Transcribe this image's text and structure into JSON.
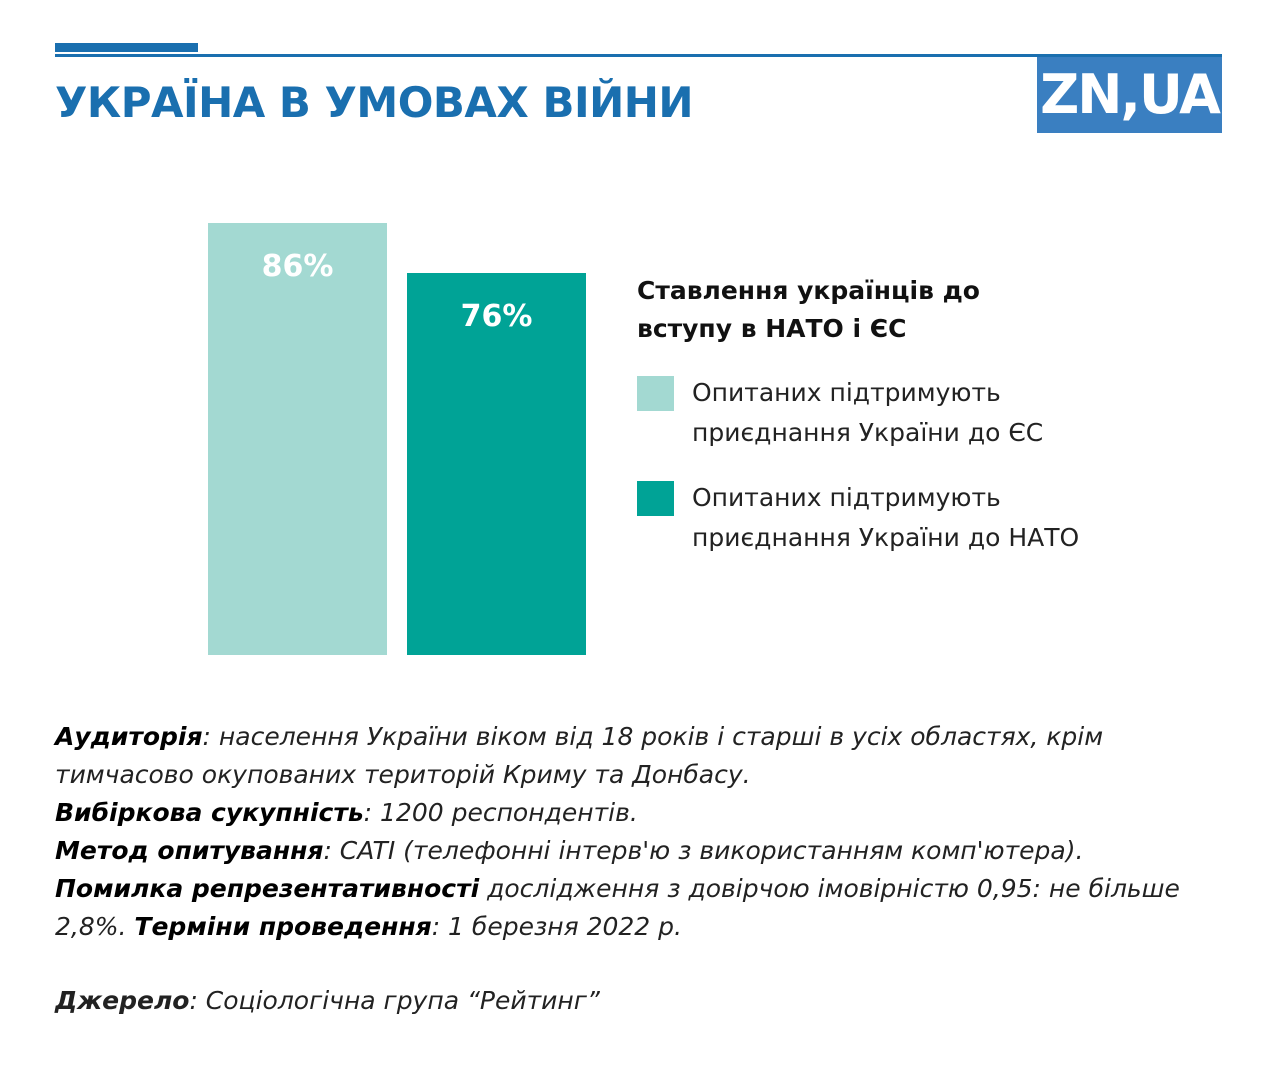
{
  "header": {
    "title": "УКРАЇНА В УМОВАХ ВІЙНИ",
    "logo": "ZN,UA"
  },
  "chart_data": {
    "type": "bar",
    "title": "Ставлення українців до вступу в НАТО і ЄС",
    "series": [
      {
        "name": "Опитаних підтримують приєднання України до ЄС",
        "color": "#a3d9d2",
        "values": [
          86
        ],
        "value_labels": [
          "86%"
        ]
      },
      {
        "name": "Опитаних підтримують приєднання України до НАТО",
        "color": "#00a396",
        "values": [
          76
        ],
        "value_labels": [
          "76%"
        ]
      }
    ]
  },
  "notes": [
    [
      {
        "label": "Аудиторія",
        "text": ": населення України віком від 18 років і старші в усіх областях, крім тимчасово окупованих територій Криму та Донбасу."
      }
    ],
    [
      {
        "label": "Вибіркова сукупність",
        "text": ": 1200 респондентів."
      }
    ],
    [
      {
        "label": "Метод опитування",
        "text": ": CATI (телефонні інтерв'ю з використанням комп'ютера)."
      }
    ],
    [
      {
        "label": "Помилка репрезентативності",
        "text": " дослідження з довірчою імовірністю 0,95: не більше 2,8%."
      },
      {
        "label": "Терміни проведення",
        "text": ": 1 березня 2022 р."
      }
    ]
  ],
  "source": {
    "label": "Джерело",
    "text": ": Соціологічна група “Рейтинг”"
  }
}
